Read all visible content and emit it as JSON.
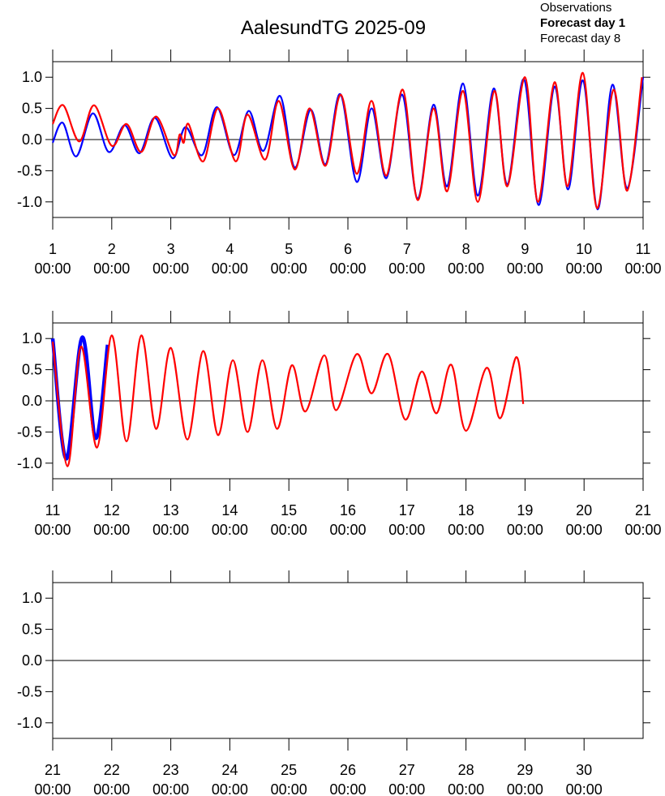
{
  "chart_data": [
    {
      "type": "line",
      "title": "AalesundTG 2025-09",
      "xlim": [
        1,
        11
      ],
      "ylim": [
        -1.25,
        1.25
      ],
      "xticks": [
        {
          "value": 1,
          "label": "1\n00:00"
        },
        {
          "value": 2,
          "label": "2\n00:00"
        },
        {
          "value": 3,
          "label": "3\n00:00"
        },
        {
          "value": 4,
          "label": "4\n00:00"
        },
        {
          "value": 5,
          "label": "5\n00:00"
        },
        {
          "value": 6,
          "label": "6\n00:00"
        },
        {
          "value": 7,
          "label": "7\n00:00"
        },
        {
          "value": 8,
          "label": "8\n00:00"
        },
        {
          "value": 9,
          "label": "9\n00:00"
        },
        {
          "value": 10,
          "label": "10\n00:00"
        },
        {
          "value": 11,
          "label": "11\n00:00"
        }
      ],
      "yticks": [
        {
          "value": -1,
          "label": "-1.0"
        },
        -0.5,
        {
          "value": 0,
          "label": "0.0"
        },
        0.5,
        {
          "value": 1,
          "label": "1.0"
        }
      ],
      "series": [
        {
          "name": "Observations",
          "color": "#000000",
          "x": [],
          "values": []
        },
        {
          "name": "Forecast day 1",
          "color": "#0000ff",
          "x": [
            1.0,
            1.17,
            1.4,
            1.68,
            1.95,
            2.22,
            2.47,
            2.73,
            3.03,
            3.25,
            3.53,
            3.78,
            4.07,
            4.32,
            4.57,
            4.85,
            5.1,
            5.37,
            5.62,
            5.87,
            6.15,
            6.4,
            6.65,
            6.92,
            7.18,
            7.45,
            7.68,
            7.95,
            8.2,
            8.47,
            8.7,
            8.98,
            9.23,
            9.5,
            9.73,
            9.98,
            10.23,
            10.48,
            10.73,
            11.0
          ],
          "values": [
            -0.05,
            0.27,
            -0.27,
            0.42,
            -0.2,
            0.23,
            -0.22,
            0.35,
            -0.3,
            0.2,
            -0.25,
            0.52,
            -0.25,
            0.46,
            -0.18,
            0.7,
            -0.45,
            0.48,
            -0.4,
            0.73,
            -0.68,
            0.5,
            -0.62,
            0.72,
            -0.95,
            0.56,
            -0.75,
            0.9,
            -0.9,
            0.82,
            -0.72,
            0.97,
            -1.05,
            0.85,
            -0.8,
            0.95,
            -1.12,
            0.88,
            -0.78,
            1.0
          ]
        },
        {
          "name": "Forecast day 8",
          "color": "#ff0000",
          "x": [
            1.0,
            1.18,
            1.45,
            1.7,
            2.0,
            2.25,
            2.5,
            2.75,
            3.05,
            3.15,
            3.22,
            3.3,
            3.55,
            3.8,
            4.1,
            4.3,
            4.6,
            4.83,
            5.1,
            5.35,
            5.62,
            5.88,
            6.15,
            6.4,
            6.65,
            6.93,
            7.18,
            7.45,
            7.68,
            7.95,
            8.2,
            8.48,
            8.7,
            9.0,
            9.22,
            9.5,
            9.72,
            9.98,
            10.22,
            10.5,
            10.73,
            10.98
          ],
          "values": [
            0.25,
            0.55,
            -0.03,
            0.55,
            -0.1,
            0.25,
            -0.2,
            0.37,
            -0.25,
            0.08,
            -0.05,
            0.25,
            -0.35,
            0.5,
            -0.35,
            0.4,
            -0.32,
            0.62,
            -0.48,
            0.5,
            -0.42,
            0.72,
            -0.55,
            0.62,
            -0.58,
            0.8,
            -0.97,
            0.5,
            -0.83,
            0.78,
            -1.0,
            0.78,
            -0.75,
            1.0,
            -1.0,
            0.92,
            -0.75,
            1.07,
            -1.1,
            0.8,
            -0.82,
            1.0
          ]
        }
      ]
    },
    {
      "type": "line",
      "xlim": [
        11,
        21
      ],
      "ylim": [
        -1.25,
        1.25
      ],
      "xticks": [
        {
          "value": 11,
          "label": "11\n00:00"
        },
        {
          "value": 12,
          "label": "12\n00:00"
        },
        {
          "value": 13,
          "label": "13\n00:00"
        },
        {
          "value": 14,
          "label": "14\n00:00"
        },
        {
          "value": 15,
          "label": "15\n00:00"
        },
        {
          "value": 16,
          "label": "16\n00:00"
        },
        {
          "value": 17,
          "label": "17\n00:00"
        },
        {
          "value": 18,
          "label": "18\n00:00"
        },
        {
          "value": 19,
          "label": "19\n00:00"
        },
        {
          "value": 20,
          "label": "20\n00:00"
        },
        {
          "value": 21,
          "label": "21\n00:00"
        }
      ],
      "yticks": [
        {
          "value": -1,
          "label": "-1.0"
        },
        -0.5,
        {
          "value": 0,
          "label": "0.0"
        },
        0.5,
        {
          "value": 1,
          "label": "1.0"
        }
      ],
      "series": [
        {
          "color": "#0000ff",
          "x": [
            11.0,
            11.23,
            11.5,
            11.73,
            11.93
          ],
          "values": [
            1.0,
            -0.93,
            1.02,
            -0.6,
            0.9
          ]
        },
        {
          "color": "#ff0000",
          "x": [
            11.0,
            11.25,
            11.48,
            11.75,
            12.0,
            12.25,
            12.5,
            12.75,
            13.0,
            13.28,
            13.55,
            13.8,
            14.05,
            14.3,
            14.55,
            14.8,
            15.05,
            15.28,
            15.6,
            15.8,
            16.15,
            16.4,
            16.68,
            16.97,
            17.25,
            17.5,
            17.75,
            18.0,
            18.35,
            18.58,
            18.85,
            18.97
          ],
          "values": [
            0.95,
            -1.05,
            0.87,
            -0.75,
            1.05,
            -0.65,
            1.05,
            -0.45,
            0.85,
            -0.62,
            0.8,
            -0.55,
            0.65,
            -0.5,
            0.65,
            -0.45,
            0.57,
            -0.17,
            0.73,
            -0.15,
            0.75,
            0.12,
            0.75,
            -0.3,
            0.47,
            -0.2,
            0.58,
            -0.48,
            0.53,
            -0.28,
            0.7,
            -0.05
          ]
        }
      ]
    },
    {
      "type": "line",
      "xlim": [
        21,
        31
      ],
      "ylim": [
        -1.25,
        1.25
      ],
      "xticks": [
        {
          "value": 21,
          "label": "21\n00:00"
        },
        {
          "value": 22,
          "label": "22\n00:00"
        },
        {
          "value": 23,
          "label": "23\n00:00"
        },
        {
          "value": 24,
          "label": "24\n00:00"
        },
        {
          "value": 25,
          "label": "25\n00:00"
        },
        {
          "value": 26,
          "label": "26\n00:00"
        },
        {
          "value": 27,
          "label": "27\n00:00"
        },
        {
          "value": 28,
          "label": "28\n00:00"
        },
        {
          "value": 29,
          "label": "29\n00:00"
        },
        {
          "value": 30,
          "label": "30\n00:00"
        }
      ],
      "yticks": [
        {
          "value": -1,
          "label": "-1.0"
        },
        -0.5,
        {
          "value": 0,
          "label": "0.0"
        },
        0.5,
        {
          "value": 1,
          "label": "1.0"
        }
      ],
      "series": []
    }
  ]
}
